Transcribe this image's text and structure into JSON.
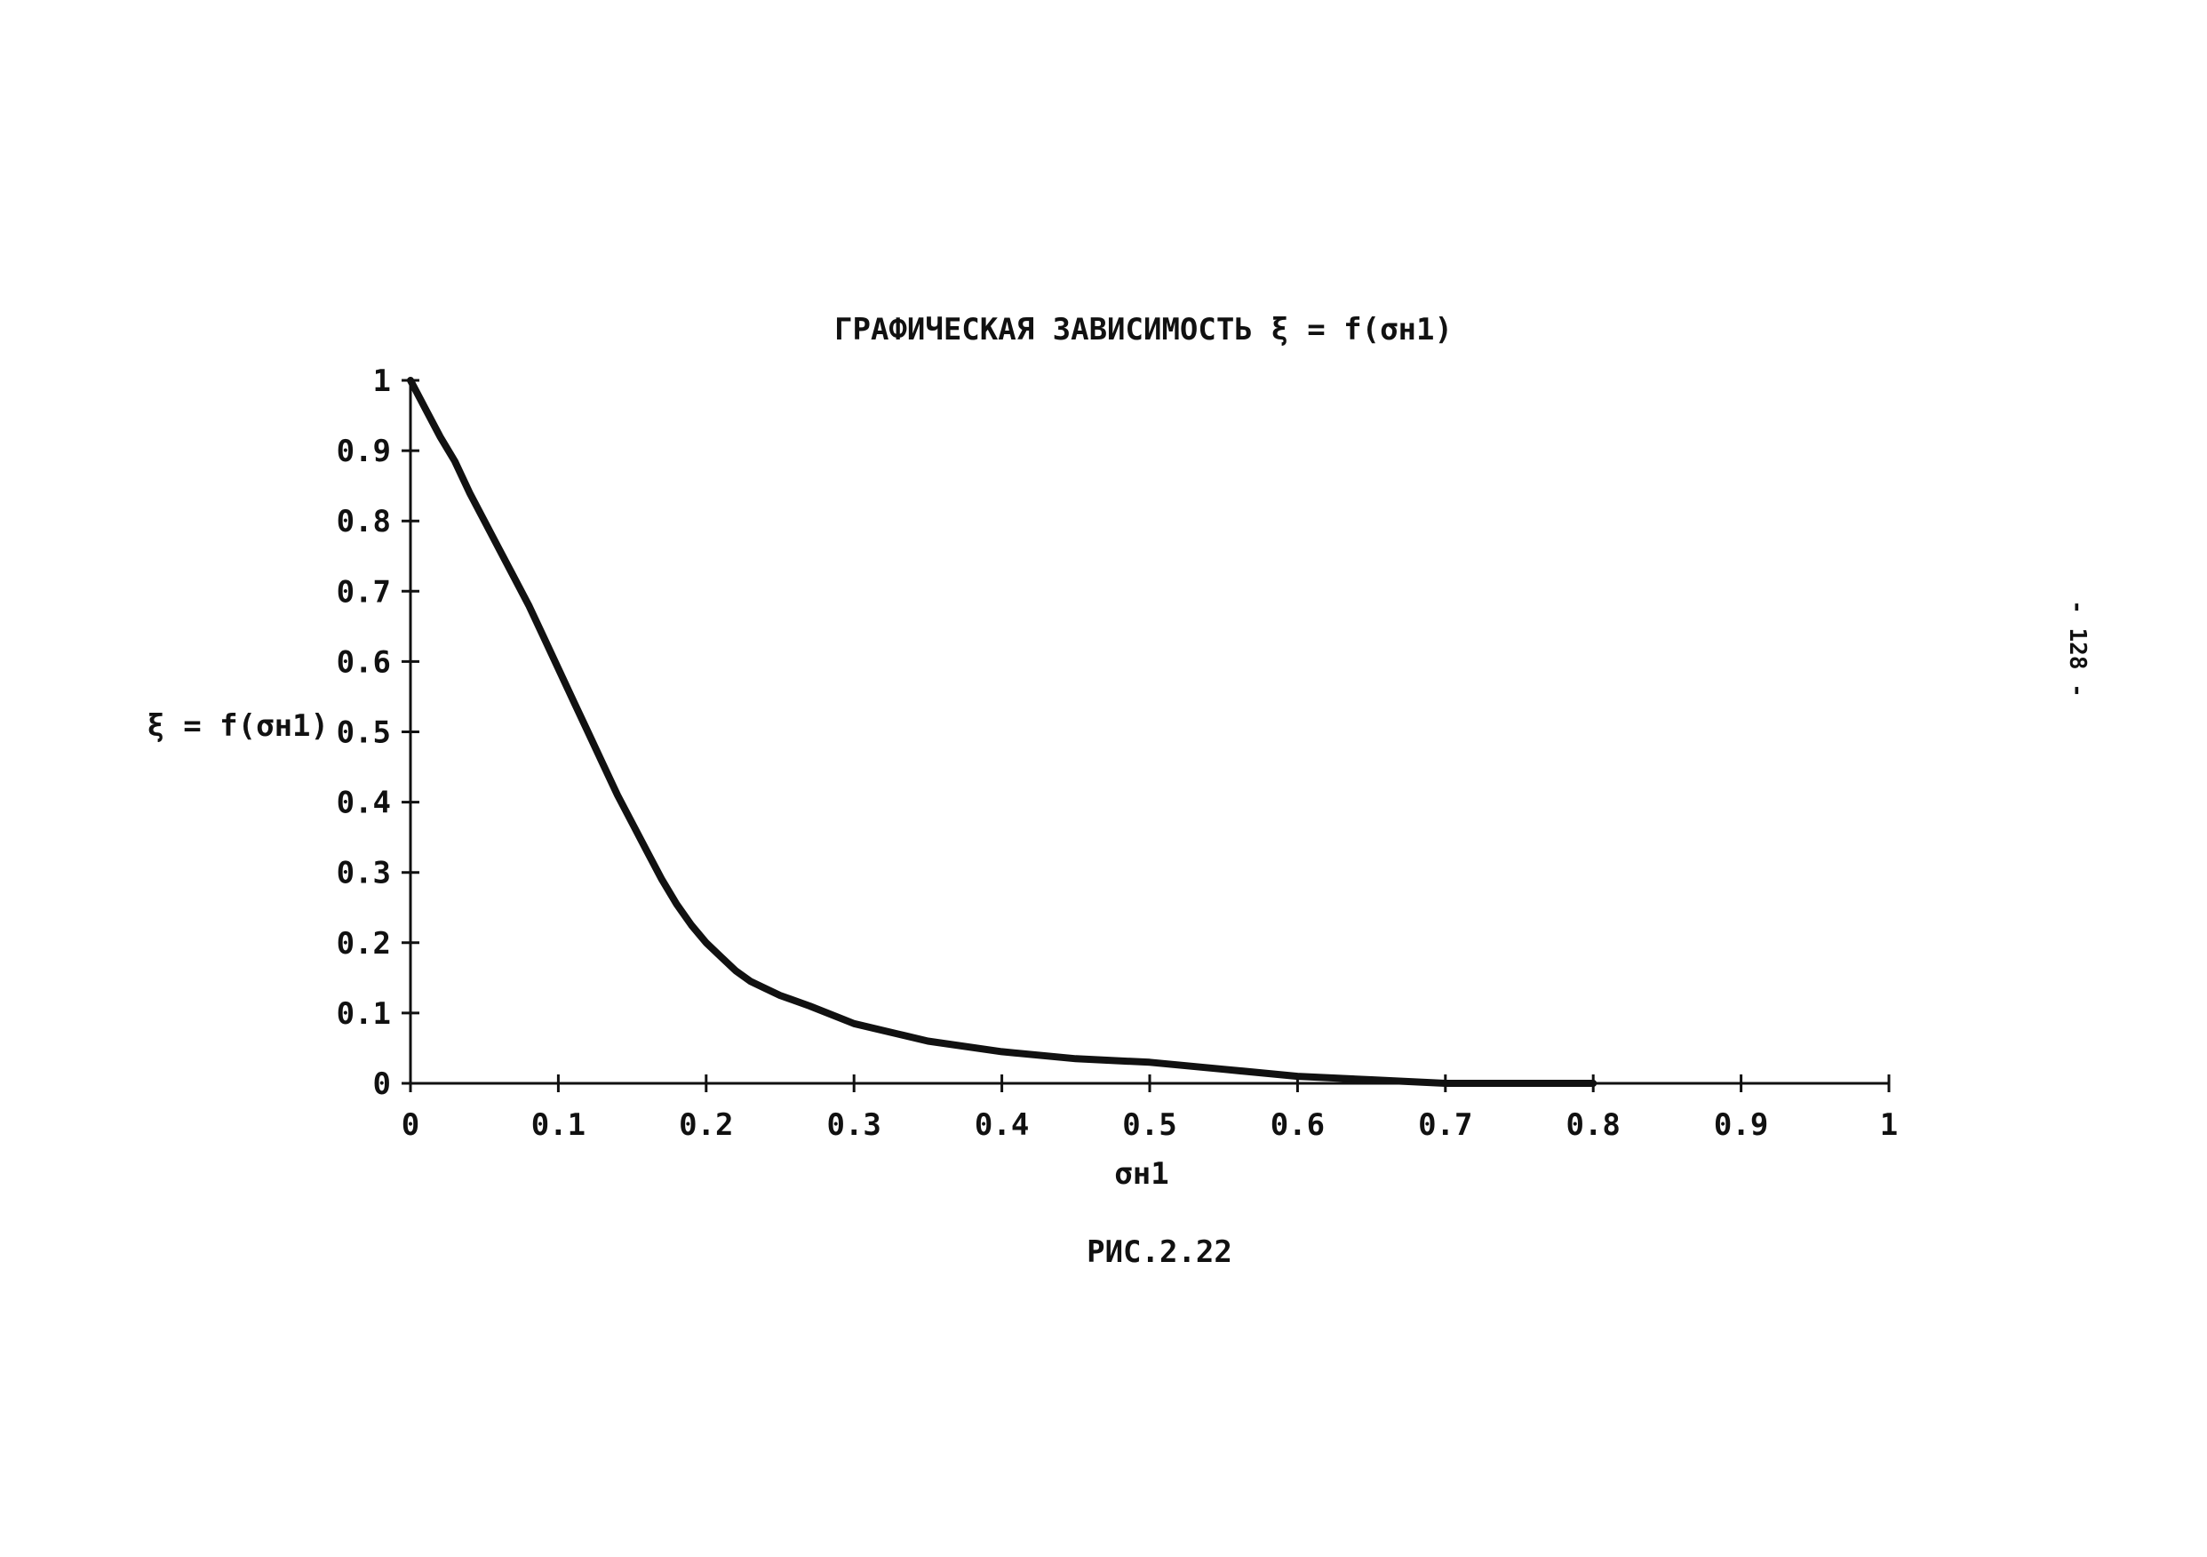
{
  "chart_data": {
    "type": "line",
    "title": "ГРАФИЧЕСКАЯ ЗАВИСИМОСТЬ ξ = f(σн1)",
    "xlabel": "σн1",
    "ylabel": "ξ = f(σн1)",
    "xlim": [
      0,
      1
    ],
    "ylim": [
      0,
      1
    ],
    "xticks": [
      "0",
      "0.1",
      "0.2",
      "0.3",
      "0.4",
      "0.5",
      "0.6",
      "0.7",
      "0.8",
      "0.9",
      "1"
    ],
    "yticks": [
      "0",
      "0.1",
      "0.2",
      "0.3",
      "0.4",
      "0.5",
      "0.6",
      "0.7",
      "0.8",
      "0.9",
      "1"
    ],
    "grid": false,
    "legend": false,
    "line_color": "#111111",
    "series": [
      {
        "x": [
          0,
          0.01,
          0.02,
          0.03,
          0.04,
          0.05,
          0.06,
          0.07,
          0.08,
          0.09,
          0.1,
          0.11,
          0.12,
          0.13,
          0.14,
          0.15,
          0.16,
          0.17,
          0.18,
          0.19,
          0.2,
          0.21,
          0.22,
          0.23,
          0.24,
          0.25,
          0.27,
          0.3,
          0.33,
          0.35,
          0.4,
          0.45,
          0.5,
          0.55,
          0.6,
          0.65,
          0.7,
          0.75,
          0.8
        ],
        "y": [
          1.0,
          0.96,
          0.92,
          0.885,
          0.84,
          0.8,
          0.76,
          0.72,
          0.68,
          0.635,
          0.59,
          0.545,
          0.5,
          0.455,
          0.41,
          0.37,
          0.33,
          0.29,
          0.255,
          0.225,
          0.2,
          0.18,
          0.16,
          0.145,
          0.135,
          0.125,
          0.11,
          0.085,
          0.07,
          0.06,
          0.045,
          0.035,
          0.03,
          0.02,
          0.01,
          0.005,
          0.0,
          0.0,
          0.0
        ]
      }
    ]
  },
  "caption": "РИС.2.22",
  "page_number": "- 128 -"
}
